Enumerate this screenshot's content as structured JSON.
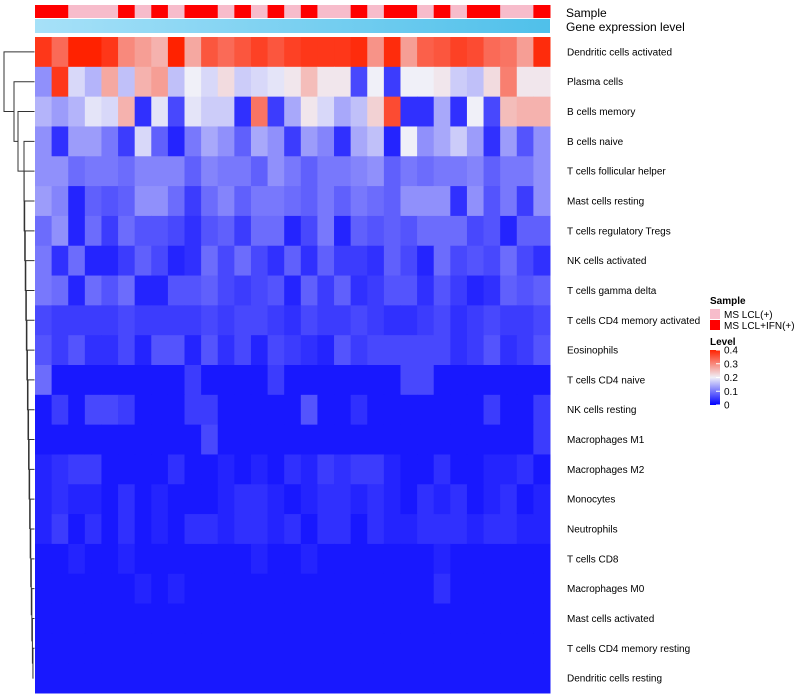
{
  "chart_data": {
    "type": "heatmap",
    "annotation_tracks": [
      {
        "name": "Sample",
        "kind": "categorical",
        "values": [
          "MS LCL+IFN(+)",
          "MS LCL+IFN(+)",
          "MS LCL(+)",
          "MS LCL(+)",
          "MS LCL(+)",
          "MS LCL+IFN(+)",
          "MS LCL(+)",
          "MS LCL+IFN(+)",
          "MS LCL(+)",
          "MS LCL+IFN(+)",
          "MS LCL+IFN(+)",
          "MS LCL(+)",
          "MS LCL+IFN(+)",
          "MS LCL(+)",
          "MS LCL+IFN(+)",
          "MS LCL(+)",
          "MS LCL+IFN(+)",
          "MS LCL(+)",
          "MS LCL(+)",
          "MS LCL+IFN(+)",
          "MS LCL(+)",
          "MS LCL+IFN(+)",
          "MS LCL+IFN(+)",
          "MS LCL(+)",
          "MS LCL+IFN(+)",
          "MS LCL(+)",
          "MS LCL+IFN(+)",
          "MS LCL+IFN(+)",
          "MS LCL(+)",
          "MS LCL(+)",
          "MS LCL+IFN(+)"
        ]
      },
      {
        "name": "Gene expression level",
        "kind": "gradient"
      }
    ],
    "rows": [
      {
        "label": "Dendritic cells activated",
        "values": [
          0.38,
          0.33,
          0.4,
          0.4,
          0.38,
          0.3,
          0.28,
          0.26,
          0.4,
          0.27,
          0.35,
          0.33,
          0.35,
          0.37,
          0.35,
          0.37,
          0.38,
          0.38,
          0.38,
          0.39,
          0.29,
          0.39,
          0.28,
          0.34,
          0.35,
          0.37,
          0.36,
          0.33,
          0.32,
          0.28,
          0.39
        ]
      },
      {
        "label": "Plasma cells",
        "values": [
          0.12,
          0.38,
          0.18,
          0.15,
          0.27,
          0.16,
          0.26,
          0.28,
          0.16,
          0.2,
          0.18,
          0.22,
          0.17,
          0.18,
          0.19,
          0.21,
          0.25,
          0.21,
          0.21,
          0.06,
          0.2,
          0.05,
          0.2,
          0.2,
          0.21,
          0.17,
          0.16,
          0.22,
          0.31,
          0.21,
          0.21
        ]
      },
      {
        "label": "B cells memory",
        "values": [
          0.15,
          0.13,
          0.15,
          0.19,
          0.18,
          0.26,
          0.04,
          0.19,
          0.06,
          0.19,
          0.17,
          0.17,
          0.04,
          0.32,
          0.05,
          0.14,
          0.21,
          0.18,
          0.14,
          0.16,
          0.23,
          0.36,
          0.04,
          0.04,
          0.14,
          0.04,
          0.2,
          0.06,
          0.25,
          0.26,
          0.26
        ]
      },
      {
        "label": "B cells naive",
        "values": [
          0.12,
          0.04,
          0.13,
          0.13,
          0.1,
          0.05,
          0.18,
          0.08,
          0.03,
          0.1,
          0.14,
          0.12,
          0.08,
          0.14,
          0.12,
          0.05,
          0.13,
          0.11,
          0.04,
          0.14,
          0.16,
          0.03,
          0.2,
          0.12,
          0.14,
          0.17,
          0.13,
          0.04,
          0.13,
          0.07,
          0.12
        ]
      },
      {
        "label": "T cells follicular helper",
        "values": [
          0.12,
          0.12,
          0.09,
          0.1,
          0.1,
          0.09,
          0.11,
          0.11,
          0.11,
          0.08,
          0.11,
          0.1,
          0.1,
          0.08,
          0.12,
          0.1,
          0.08,
          0.1,
          0.1,
          0.11,
          0.12,
          0.08,
          0.1,
          0.09,
          0.1,
          0.1,
          0.11,
          0.08,
          0.1,
          0.1,
          0.12
        ]
      },
      {
        "label": "Mast cells resting",
        "values": [
          0.13,
          0.11,
          0.03,
          0.08,
          0.07,
          0.08,
          0.12,
          0.12,
          0.09,
          0.05,
          0.09,
          0.11,
          0.08,
          0.1,
          0.1,
          0.09,
          0.08,
          0.1,
          0.08,
          0.1,
          0.09,
          0.08,
          0.12,
          0.12,
          0.12,
          0.04,
          0.12,
          0.07,
          0.1,
          0.05,
          0.12
        ]
      },
      {
        "label": "T cells regulatory  Tregs",
        "values": [
          0.09,
          0.12,
          0.03,
          0.09,
          0.05,
          0.09,
          0.07,
          0.07,
          0.06,
          0.04,
          0.07,
          0.08,
          0.05,
          0.09,
          0.09,
          0.03,
          0.06,
          0.1,
          0.03,
          0.08,
          0.07,
          0.08,
          0.07,
          0.09,
          0.09,
          0.09,
          0.06,
          0.07,
          0.03,
          0.08,
          0.08
        ]
      },
      {
        "label": "NK cells activated",
        "values": [
          0.1,
          0.04,
          0.09,
          0.03,
          0.03,
          0.05,
          0.08,
          0.06,
          0.03,
          0.04,
          0.09,
          0.06,
          0.09,
          0.06,
          0.04,
          0.08,
          0.04,
          0.08,
          0.05,
          0.05,
          0.04,
          0.08,
          0.06,
          0.03,
          0.09,
          0.06,
          0.07,
          0.06,
          0.09,
          0.06,
          0.04
        ]
      },
      {
        "label": "T cells gamma delta",
        "values": [
          0.1,
          0.09,
          0.03,
          0.09,
          0.07,
          0.09,
          0.03,
          0.03,
          0.07,
          0.07,
          0.08,
          0.06,
          0.05,
          0.06,
          0.07,
          0.03,
          0.08,
          0.05,
          0.08,
          0.04,
          0.05,
          0.07,
          0.07,
          0.04,
          0.07,
          0.05,
          0.03,
          0.04,
          0.08,
          0.07,
          0.08
        ]
      },
      {
        "label": "T cells CD4 memory activated",
        "values": [
          0.06,
          0.05,
          0.05,
          0.05,
          0.05,
          0.06,
          0.05,
          0.05,
          0.05,
          0.05,
          0.06,
          0.05,
          0.06,
          0.06,
          0.05,
          0.04,
          0.06,
          0.05,
          0.05,
          0.06,
          0.05,
          0.04,
          0.04,
          0.05,
          0.06,
          0.04,
          0.05,
          0.06,
          0.05,
          0.05,
          0.06
        ]
      },
      {
        "label": "Eosinophils",
        "values": [
          0.07,
          0.05,
          0.07,
          0.04,
          0.04,
          0.06,
          0.03,
          0.07,
          0.07,
          0.03,
          0.07,
          0.04,
          0.06,
          0.03,
          0.06,
          0.05,
          0.04,
          0.03,
          0.07,
          0.05,
          0.06,
          0.06,
          0.06,
          0.06,
          0.06,
          0.04,
          0.05,
          0.07,
          0.04,
          0.05,
          0.07
        ]
      },
      {
        "label": "T cells CD4 naive",
        "values": [
          0.09,
          0.02,
          0.02,
          0.02,
          0.02,
          0.02,
          0.02,
          0.02,
          0.02,
          0.05,
          0.02,
          0.02,
          0.02,
          0.02,
          0.05,
          0.02,
          0.02,
          0.02,
          0.02,
          0.02,
          0.02,
          0.02,
          0.06,
          0.06,
          0.02,
          0.02,
          0.02,
          0.02,
          0.02,
          0.02,
          0.02
        ]
      },
      {
        "label": "NK cells resting",
        "values": [
          0.02,
          0.05,
          0.02,
          0.06,
          0.06,
          0.05,
          0.02,
          0.02,
          0.02,
          0.05,
          0.05,
          0.02,
          0.02,
          0.02,
          0.02,
          0.02,
          0.07,
          0.02,
          0.02,
          0.04,
          0.02,
          0.02,
          0.02,
          0.02,
          0.02,
          0.02,
          0.02,
          0.05,
          0.02,
          0.02,
          0.05
        ]
      },
      {
        "label": "Macrophages M1",
        "values": [
          0.02,
          0.02,
          0.02,
          0.02,
          0.02,
          0.02,
          0.02,
          0.02,
          0.02,
          0.02,
          0.06,
          0.02,
          0.02,
          0.02,
          0.02,
          0.02,
          0.02,
          0.02,
          0.02,
          0.02,
          0.02,
          0.02,
          0.02,
          0.02,
          0.02,
          0.02,
          0.02,
          0.02,
          0.02,
          0.02,
          0.05
        ]
      },
      {
        "label": "Macrophages M2",
        "values": [
          0.03,
          0.04,
          0.05,
          0.05,
          0.02,
          0.02,
          0.02,
          0.02,
          0.04,
          0.02,
          0.02,
          0.03,
          0.02,
          0.03,
          0.02,
          0.04,
          0.03,
          0.05,
          0.04,
          0.05,
          0.05,
          0.03,
          0.02,
          0.02,
          0.04,
          0.02,
          0.02,
          0.03,
          0.03,
          0.04,
          0.02
        ]
      },
      {
        "label": "Monocytes",
        "values": [
          0.03,
          0.04,
          0.03,
          0.03,
          0.02,
          0.04,
          0.02,
          0.03,
          0.02,
          0.02,
          0.02,
          0.03,
          0.04,
          0.04,
          0.03,
          0.02,
          0.03,
          0.04,
          0.04,
          0.03,
          0.04,
          0.03,
          0.02,
          0.04,
          0.03,
          0.04,
          0.02,
          0.03,
          0.04,
          0.02,
          0.03
        ]
      },
      {
        "label": "Neutrophils",
        "values": [
          0.03,
          0.05,
          0.02,
          0.04,
          0.02,
          0.04,
          0.02,
          0.03,
          0.02,
          0.04,
          0.04,
          0.03,
          0.04,
          0.04,
          0.03,
          0.04,
          0.02,
          0.04,
          0.04,
          0.02,
          0.04,
          0.03,
          0.03,
          0.04,
          0.04,
          0.04,
          0.03,
          0.04,
          0.04,
          0.03,
          0.03
        ]
      },
      {
        "label": "T cells CD8",
        "values": [
          0.02,
          0.02,
          0.03,
          0.02,
          0.02,
          0.03,
          0.02,
          0.02,
          0.02,
          0.02,
          0.02,
          0.02,
          0.02,
          0.03,
          0.02,
          0.02,
          0.03,
          0.02,
          0.02,
          0.02,
          0.02,
          0.02,
          0.02,
          0.02,
          0.03,
          0.02,
          0.02,
          0.02,
          0.02,
          0.02,
          0.02
        ]
      },
      {
        "label": "Macrophages M0",
        "values": [
          0.02,
          0.02,
          0.02,
          0.02,
          0.02,
          0.02,
          0.03,
          0.02,
          0.03,
          0.02,
          0.02,
          0.02,
          0.02,
          0.02,
          0.02,
          0.02,
          0.02,
          0.02,
          0.02,
          0.02,
          0.02,
          0.02,
          0.02,
          0.02,
          0.04,
          0.02,
          0.02,
          0.02,
          0.02,
          0.02,
          0.02
        ]
      },
      {
        "label": "Mast cells activated",
        "values": [
          0.02,
          0.02,
          0.02,
          0.02,
          0.02,
          0.02,
          0.02,
          0.02,
          0.02,
          0.02,
          0.02,
          0.02,
          0.02,
          0.02,
          0.02,
          0.02,
          0.02,
          0.02,
          0.02,
          0.02,
          0.02,
          0.02,
          0.02,
          0.02,
          0.02,
          0.02,
          0.02,
          0.02,
          0.02,
          0.02,
          0.02
        ]
      },
      {
        "label": "T cells CD4 memory resting",
        "values": [
          0.02,
          0.02,
          0.02,
          0.02,
          0.02,
          0.02,
          0.02,
          0.02,
          0.02,
          0.02,
          0.02,
          0.02,
          0.02,
          0.02,
          0.02,
          0.02,
          0.02,
          0.02,
          0.02,
          0.02,
          0.02,
          0.02,
          0.02,
          0.02,
          0.02,
          0.02,
          0.02,
          0.02,
          0.02,
          0.02,
          0.02
        ]
      },
      {
        "label": "Dendritic cells resting",
        "values": [
          0.02,
          0.02,
          0.02,
          0.02,
          0.02,
          0.02,
          0.02,
          0.02,
          0.02,
          0.02,
          0.02,
          0.02,
          0.02,
          0.02,
          0.02,
          0.02,
          0.02,
          0.02,
          0.02,
          0.02,
          0.02,
          0.02,
          0.02,
          0.02,
          0.02,
          0.02,
          0.02,
          0.02,
          0.02,
          0.02,
          0.02
        ]
      }
    ],
    "color_scale": {
      "min": 0,
      "mid": 0.2,
      "max": 0.4,
      "colors": [
        "#0000ff",
        "#f0f0f8",
        "#ff2200"
      ]
    },
    "legend": {
      "sample": {
        "title": "Sample",
        "entries": [
          {
            "label": "MS LCL(+)",
            "color": "#f7bccb"
          },
          {
            "label": "MS LCL+IFN(+)",
            "color": "#ff0000"
          }
        ]
      },
      "level": {
        "title": "Level",
        "ticks": [
          0.4,
          0.3,
          0.2,
          0.1,
          0
        ]
      }
    },
    "dendrogram": "rows",
    "gradient_track_colors": [
      "#4fc0ea",
      "#a7e1f8"
    ]
  }
}
